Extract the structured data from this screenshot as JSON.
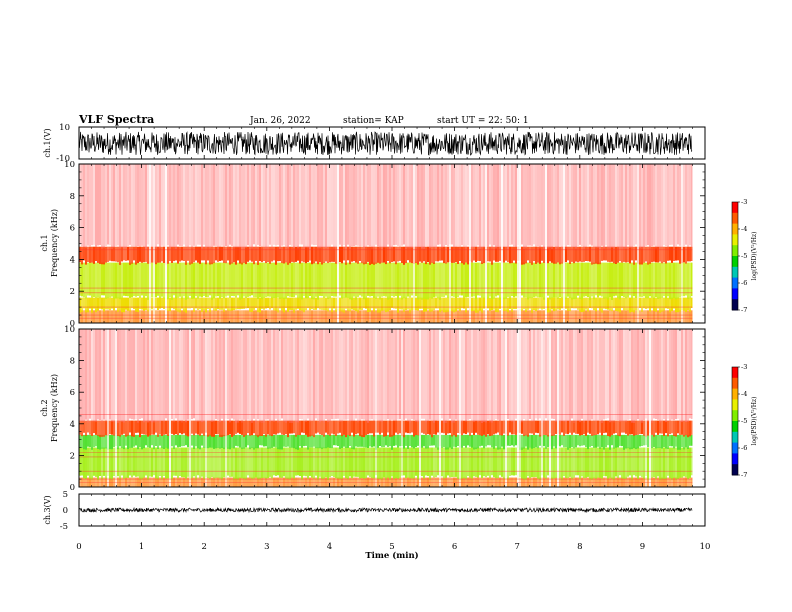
{
  "header": {
    "title": "VLF Spectra",
    "date": "Jan. 26, 2022",
    "station": "station= KAP",
    "start_ut": "start UT =  22: 50: 1"
  },
  "chart_data": [
    {
      "panel": "ch1-waveform",
      "type": "line",
      "ylabel": "ch.1(V)",
      "ylim": [
        -10,
        10
      ],
      "yticklabels": [
        "10",
        "-10"
      ],
      "xlim": [
        0,
        10
      ],
      "data_extent_min": 9.8,
      "series": [
        {
          "envelope": [
            -7.5,
            7
          ]
        }
      ],
      "color": "#000000"
    },
    {
      "panel": "ch1-spectrogram",
      "type": "heatmap",
      "ylabel": "ch.1",
      "ylabel2": "Frequency (kHz)",
      "ylim": [
        0,
        10
      ],
      "yticklabels": [
        "0",
        "2",
        "4",
        "6",
        "8",
        "10"
      ],
      "xlim": [
        0,
        10
      ],
      "data_extent_min": 9.8,
      "colorbar": {
        "label": "log(PSD)(V²/Hz)",
        "range": [
          -7,
          -3
        ],
        "ticklabels": [
          "-3",
          "-4",
          "-5",
          "-6",
          "-7"
        ],
        "colors": [
          "#ff0000",
          "#ff5a00",
          "#ffb000",
          "#e8f000",
          "#80ee00",
          "#00d000",
          "#00c8b4",
          "#0070ff",
          "#0000ff",
          "#000050"
        ]
      },
      "bands_khz": [
        {
          "from": 0,
          "to": 0.8,
          "color": "#ff9a3c"
        },
        {
          "from": 0.8,
          "to": 1.6,
          "color": "#eedc00"
        },
        {
          "from": 1.6,
          "to": 3.8,
          "color": "#c6ee10"
        },
        {
          "from": 3.8,
          "to": 4.8,
          "color": "#ff3c00"
        },
        {
          "from": 4.8,
          "to": 10,
          "color": "#ff7070"
        }
      ]
    },
    {
      "panel": "ch2-spectrogram",
      "type": "heatmap",
      "ylabel": "ch.2",
      "ylabel2": "Frequency (kHz)",
      "ylim": [
        0,
        10
      ],
      "yticklabels": [
        "0",
        "2",
        "4",
        "6",
        "8",
        "10"
      ],
      "xlim": [
        0,
        10
      ],
      "data_extent_min": 9.8,
      "colorbar": {
        "label": "log(PSD)(V²/Hz)",
        "range": [
          -7,
          -3
        ],
        "ticklabels": [
          "-3",
          "-4",
          "-5",
          "-6",
          "-7"
        ],
        "colors": [
          "#ff0000",
          "#ff5a00",
          "#ffb000",
          "#e8f000",
          "#80ee00",
          "#00d000",
          "#00c8b4",
          "#0070ff",
          "#0000ff",
          "#000050"
        ]
      },
      "bands_khz": [
        {
          "from": 0,
          "to": 0.6,
          "color": "#ff9a3c"
        },
        {
          "from": 0.6,
          "to": 2.5,
          "color": "#a8f020"
        },
        {
          "from": 2.5,
          "to": 3.3,
          "color": "#50e030"
        },
        {
          "from": 3.3,
          "to": 4.2,
          "color": "#ff4400"
        },
        {
          "from": 4.2,
          "to": 10,
          "color": "#ff7070"
        }
      ]
    },
    {
      "panel": "ch3-waveform",
      "type": "line",
      "ylabel": "ch.3(V)",
      "ylim": [
        -5,
        5
      ],
      "yticklabels": [
        "5",
        "0",
        "-5"
      ],
      "xlim": [
        0,
        10
      ],
      "data_extent_min": 9.8,
      "series": [
        {
          "envelope": [
            -0.6,
            0.6
          ]
        }
      ],
      "color": "#000000"
    }
  ],
  "xaxis": {
    "label": "Time (min)",
    "ticks": [
      0,
      1,
      2,
      3,
      4,
      5,
      6,
      7,
      8,
      9,
      10
    ],
    "ticklabels": [
      "0",
      "1",
      "2",
      "3",
      "4",
      "5",
      "6",
      "7",
      "8",
      "9",
      "10"
    ]
  }
}
